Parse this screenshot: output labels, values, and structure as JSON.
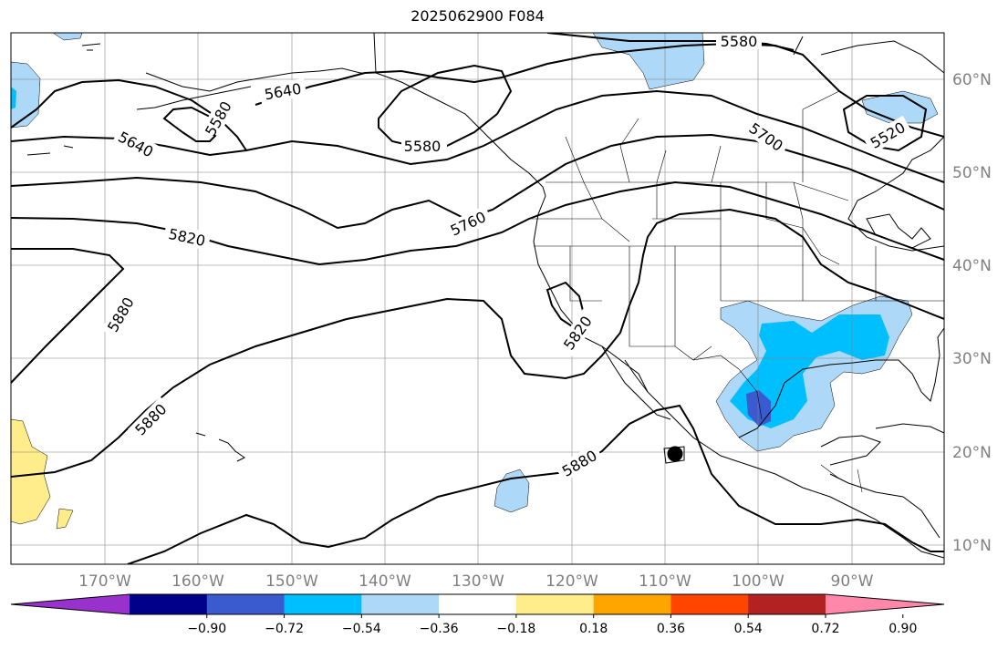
{
  "title": "2025062900 F084",
  "map": {
    "lat_labels": [
      "60°N",
      "50°N",
      "40°N",
      "30°N",
      "20°N",
      "10°N"
    ],
    "lon_labels": [
      "170°W",
      "160°W",
      "150°W",
      "140°W",
      "130°W",
      "120°W",
      "110°W",
      "100°W",
      "90°W"
    ],
    "contour_labels": [
      "5580",
      "5640",
      "5580",
      "5640",
      "5580",
      "5700",
      "5520",
      "5760",
      "5820",
      "5880",
      "5820",
      "5880",
      "5880"
    ],
    "colors": {
      "land_line": "#000000",
      "grid": "#808080",
      "contour": "#000000"
    }
  },
  "colorbar": {
    "tick_labels": [
      "−0.90",
      "−0.72",
      "−0.54",
      "−0.36",
      "−0.18",
      "0.18",
      "0.36",
      "0.54",
      "0.72",
      "0.90"
    ],
    "colors": [
      "#9932cc",
      "#00008b",
      "#3a5bd0",
      "#00bfff",
      "#add8f7",
      "#ffffff",
      "#ffec8b",
      "#ffa500",
      "#ff4500",
      "#b22222",
      "#ff88aa"
    ]
  }
}
